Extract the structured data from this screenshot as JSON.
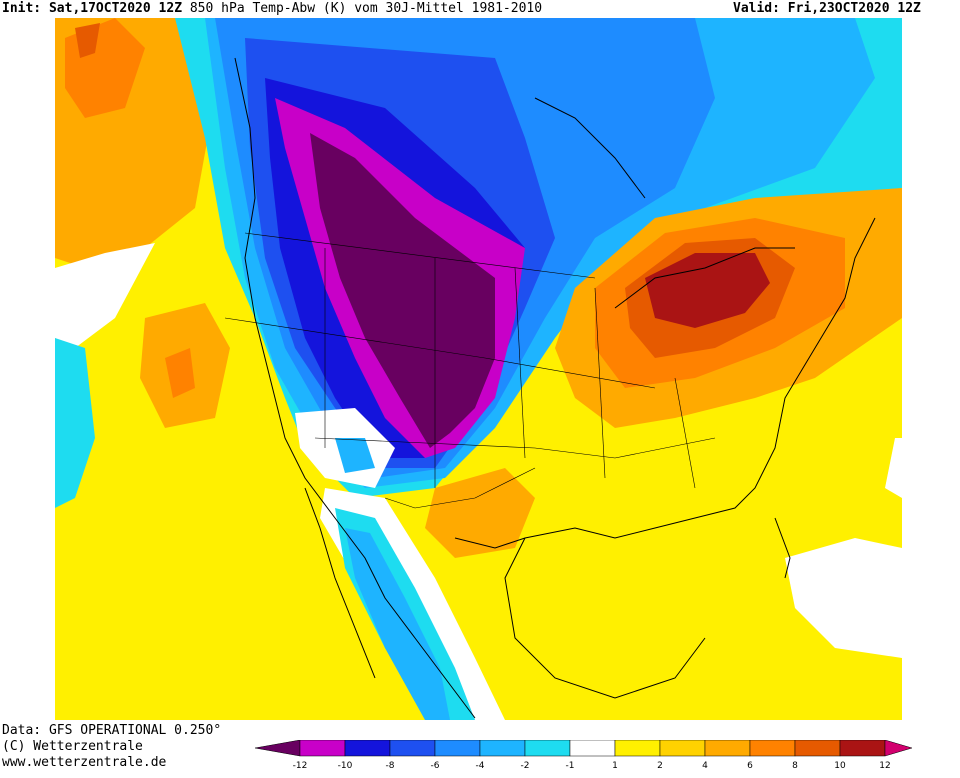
{
  "header": {
    "init_label": "Init:",
    "init_value": "Sat,17OCT2020 12Z",
    "title": "850 hPa Temp-Abw (K) vom 30J-Mittel 1981-2010",
    "valid_label": "Valid:",
    "valid_value": "Fri,23OCT2020 12Z"
  },
  "footer": {
    "data_source": "Data: GFS OPERATIONAL 0.250°",
    "copyright": "(C) Wetterzentrale",
    "url": "www.wetterzentrale.de"
  },
  "legend": {
    "ticks": [
      "-12",
      "-10",
      "-8",
      "-6",
      "-4",
      "-2",
      "-1",
      "1",
      "2",
      "4",
      "6",
      "8",
      "10",
      "12"
    ],
    "colors": [
      "#680060",
      "#c800c8",
      "#1414dc",
      "#1e50f0",
      "#1e8cff",
      "#1eb4ff",
      "#1edcf0",
      "#ffffff",
      "#fff000",
      "#ffd200",
      "#ffaa00",
      "#ff8200",
      "#e65a00",
      "#aa1414",
      "#d2006e"
    ]
  },
  "map": {
    "colors": {
      "deep_purple": "#680060",
      "magenta": "#c800c8",
      "dark_blue": "#1414dc",
      "blue": "#1e50f0",
      "mid_blue": "#1e8cff",
      "light_blue": "#1eb4ff",
      "cyan": "#1edcf0",
      "yellow": "#fff000",
      "gold": "#ffd200",
      "amber": "#ffaa00",
      "orange": "#ff8200",
      "dark_orange": "#e65a00",
      "dark_red": "#aa1414"
    }
  }
}
